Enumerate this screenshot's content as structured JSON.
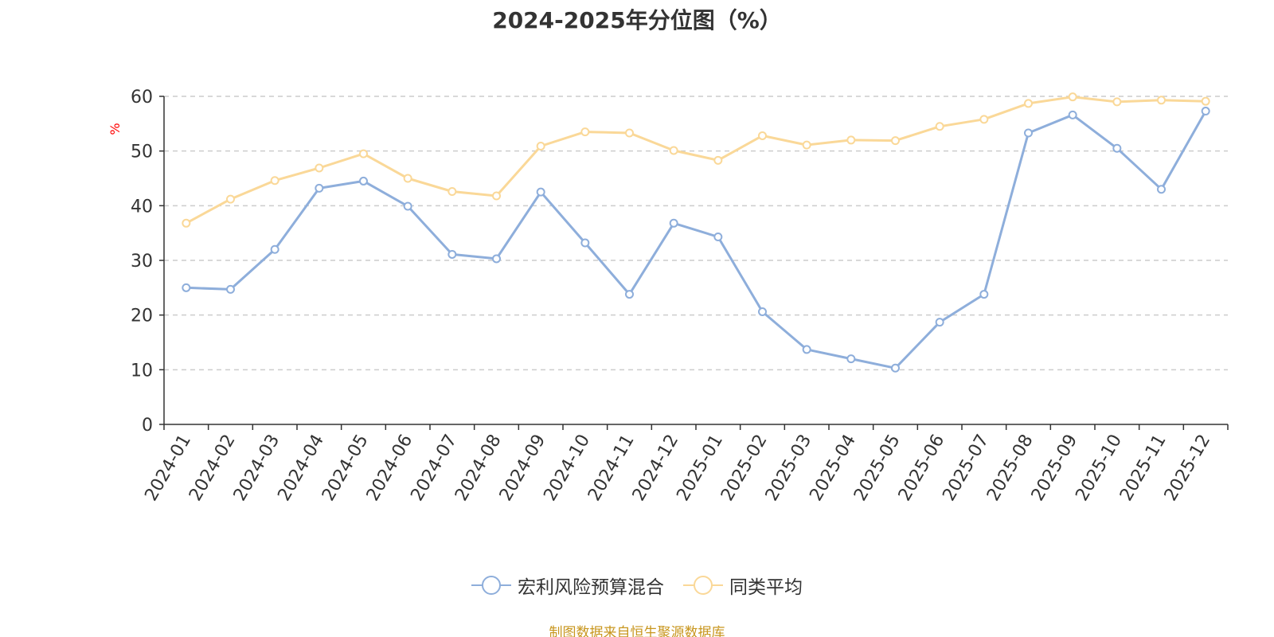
{
  "chart_data": {
    "type": "line",
    "title": "2024-2025年分位图（%）",
    "ylabel": "%",
    "xlabel": "",
    "ylim": [
      0,
      60
    ],
    "yticks": [
      0,
      10,
      20,
      30,
      40,
      50,
      60
    ],
    "grid": true,
    "legend_position": "bottom-center",
    "categories": [
      "2024-01",
      "2024-02",
      "2024-03",
      "2024-04",
      "2024-05",
      "2024-06",
      "2024-07",
      "2024-08",
      "2024-09",
      "2024-10",
      "2024-11",
      "2024-12",
      "2025-01",
      "2025-02",
      "2025-03",
      "2025-04",
      "2025-05",
      "2025-06",
      "2025-07",
      "2025-08",
      "2025-09",
      "2025-10",
      "2025-11",
      "2025-12"
    ],
    "series": [
      {
        "name": "宏利风险预算混合",
        "color": "#8eaedb",
        "values": [
          25.0,
          24.7,
          32.0,
          43.2,
          44.5,
          39.9,
          31.1,
          30.3,
          42.5,
          33.2,
          23.8,
          36.8,
          34.3,
          20.6,
          13.7,
          12.0,
          10.3,
          18.7,
          23.8,
          53.3,
          56.6,
          50.5,
          43.0,
          57.3
        ]
      },
      {
        "name": "同类平均",
        "color": "#fad898",
        "values": [
          36.8,
          41.2,
          44.6,
          46.9,
          49.5,
          45.0,
          42.6,
          41.8,
          50.9,
          53.5,
          53.3,
          50.1,
          48.3,
          52.8,
          51.1,
          52.0,
          51.9,
          54.5,
          55.8,
          58.7,
          59.9,
          59.0,
          59.3,
          59.1
        ]
      }
    ]
  },
  "source_text": "制图数据来自恒生聚源数据库"
}
